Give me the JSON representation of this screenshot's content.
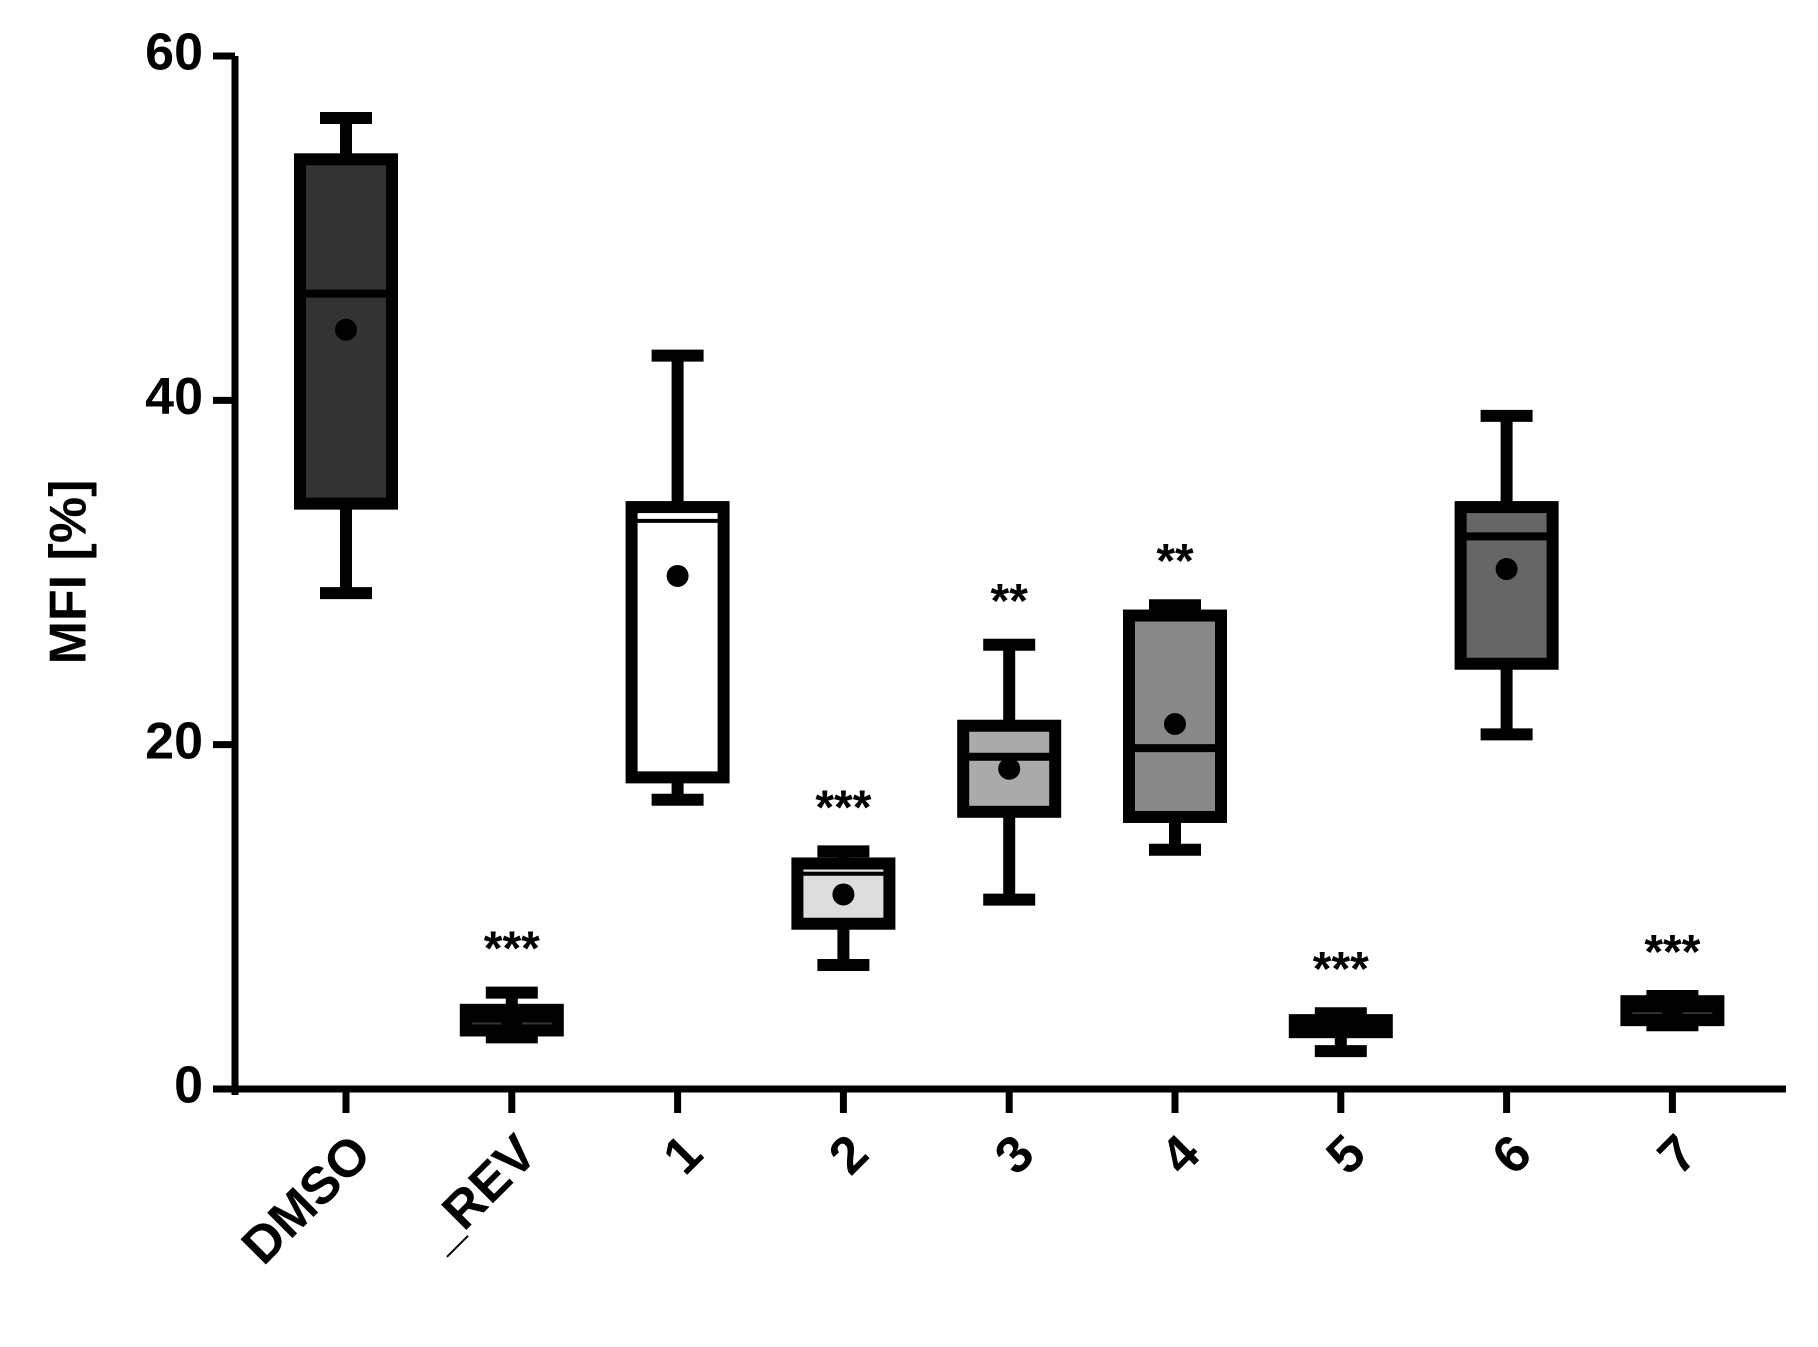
{
  "chart_data": {
    "type": "box",
    "y_label": "MFI [%]",
    "categories": [
      "DMSO",
      "_REV",
      "1",
      "2",
      "3",
      "4",
      "5",
      "6",
      "7"
    ],
    "boxes": [
      {
        "whislo": 28.8,
        "q1": 34.0,
        "med": 46.2,
        "q3": 54.0,
        "whishi": 56.4,
        "mean": 44.1
      },
      {
        "whislo": 3.0,
        "q1": 3.4,
        "med": 4.1,
        "q3": 4.6,
        "whishi": 5.6,
        "mean": 4.0
      },
      {
        "whislo": 16.8,
        "q1": 18.1,
        "med": 33.0,
        "q3": 33.8,
        "whishi": 42.6,
        "mean": 29.8
      },
      {
        "whislo": 7.2,
        "q1": 9.6,
        "med": 12.5,
        "q3": 13.1,
        "whishi": 13.8,
        "mean": 11.3
      },
      {
        "whislo": 11.0,
        "q1": 16.1,
        "med": 19.3,
        "q3": 21.1,
        "whishi": 25.8,
        "mean": 18.6
      },
      {
        "whislo": 13.9,
        "q1": 15.8,
        "med": 19.8,
        "q3": 27.5,
        "whishi": 28.1,
        "mean": 21.2
      },
      {
        "whislo": 2.2,
        "q1": 3.3,
        "med": 3.7,
        "q3": 4.0,
        "whishi": 4.4,
        "mean": 3.7
      },
      {
        "whislo": 20.6,
        "q1": 24.7,
        "med": 32.1,
        "q3": 33.8,
        "whishi": 39.1,
        "mean": 30.2
      },
      {
        "whislo": 3.7,
        "q1": 4.0,
        "med": 4.7,
        "q3": 5.1,
        "whishi": 5.4,
        "mean": 4.6
      }
    ],
    "colors": [
      "#333333",
      "#333333",
      "#ffffff",
      "#dddddd",
      "#aaaaaa",
      "#888888",
      "#333333",
      "#666666",
      "#333333"
    ],
    "annotations": [
      null,
      "***",
      null,
      "***",
      "**",
      "**",
      "***",
      null,
      "***"
    ],
    "ylim": [
      0,
      60
    ],
    "yticks": [
      0,
      20,
      40,
      60
    ]
  }
}
